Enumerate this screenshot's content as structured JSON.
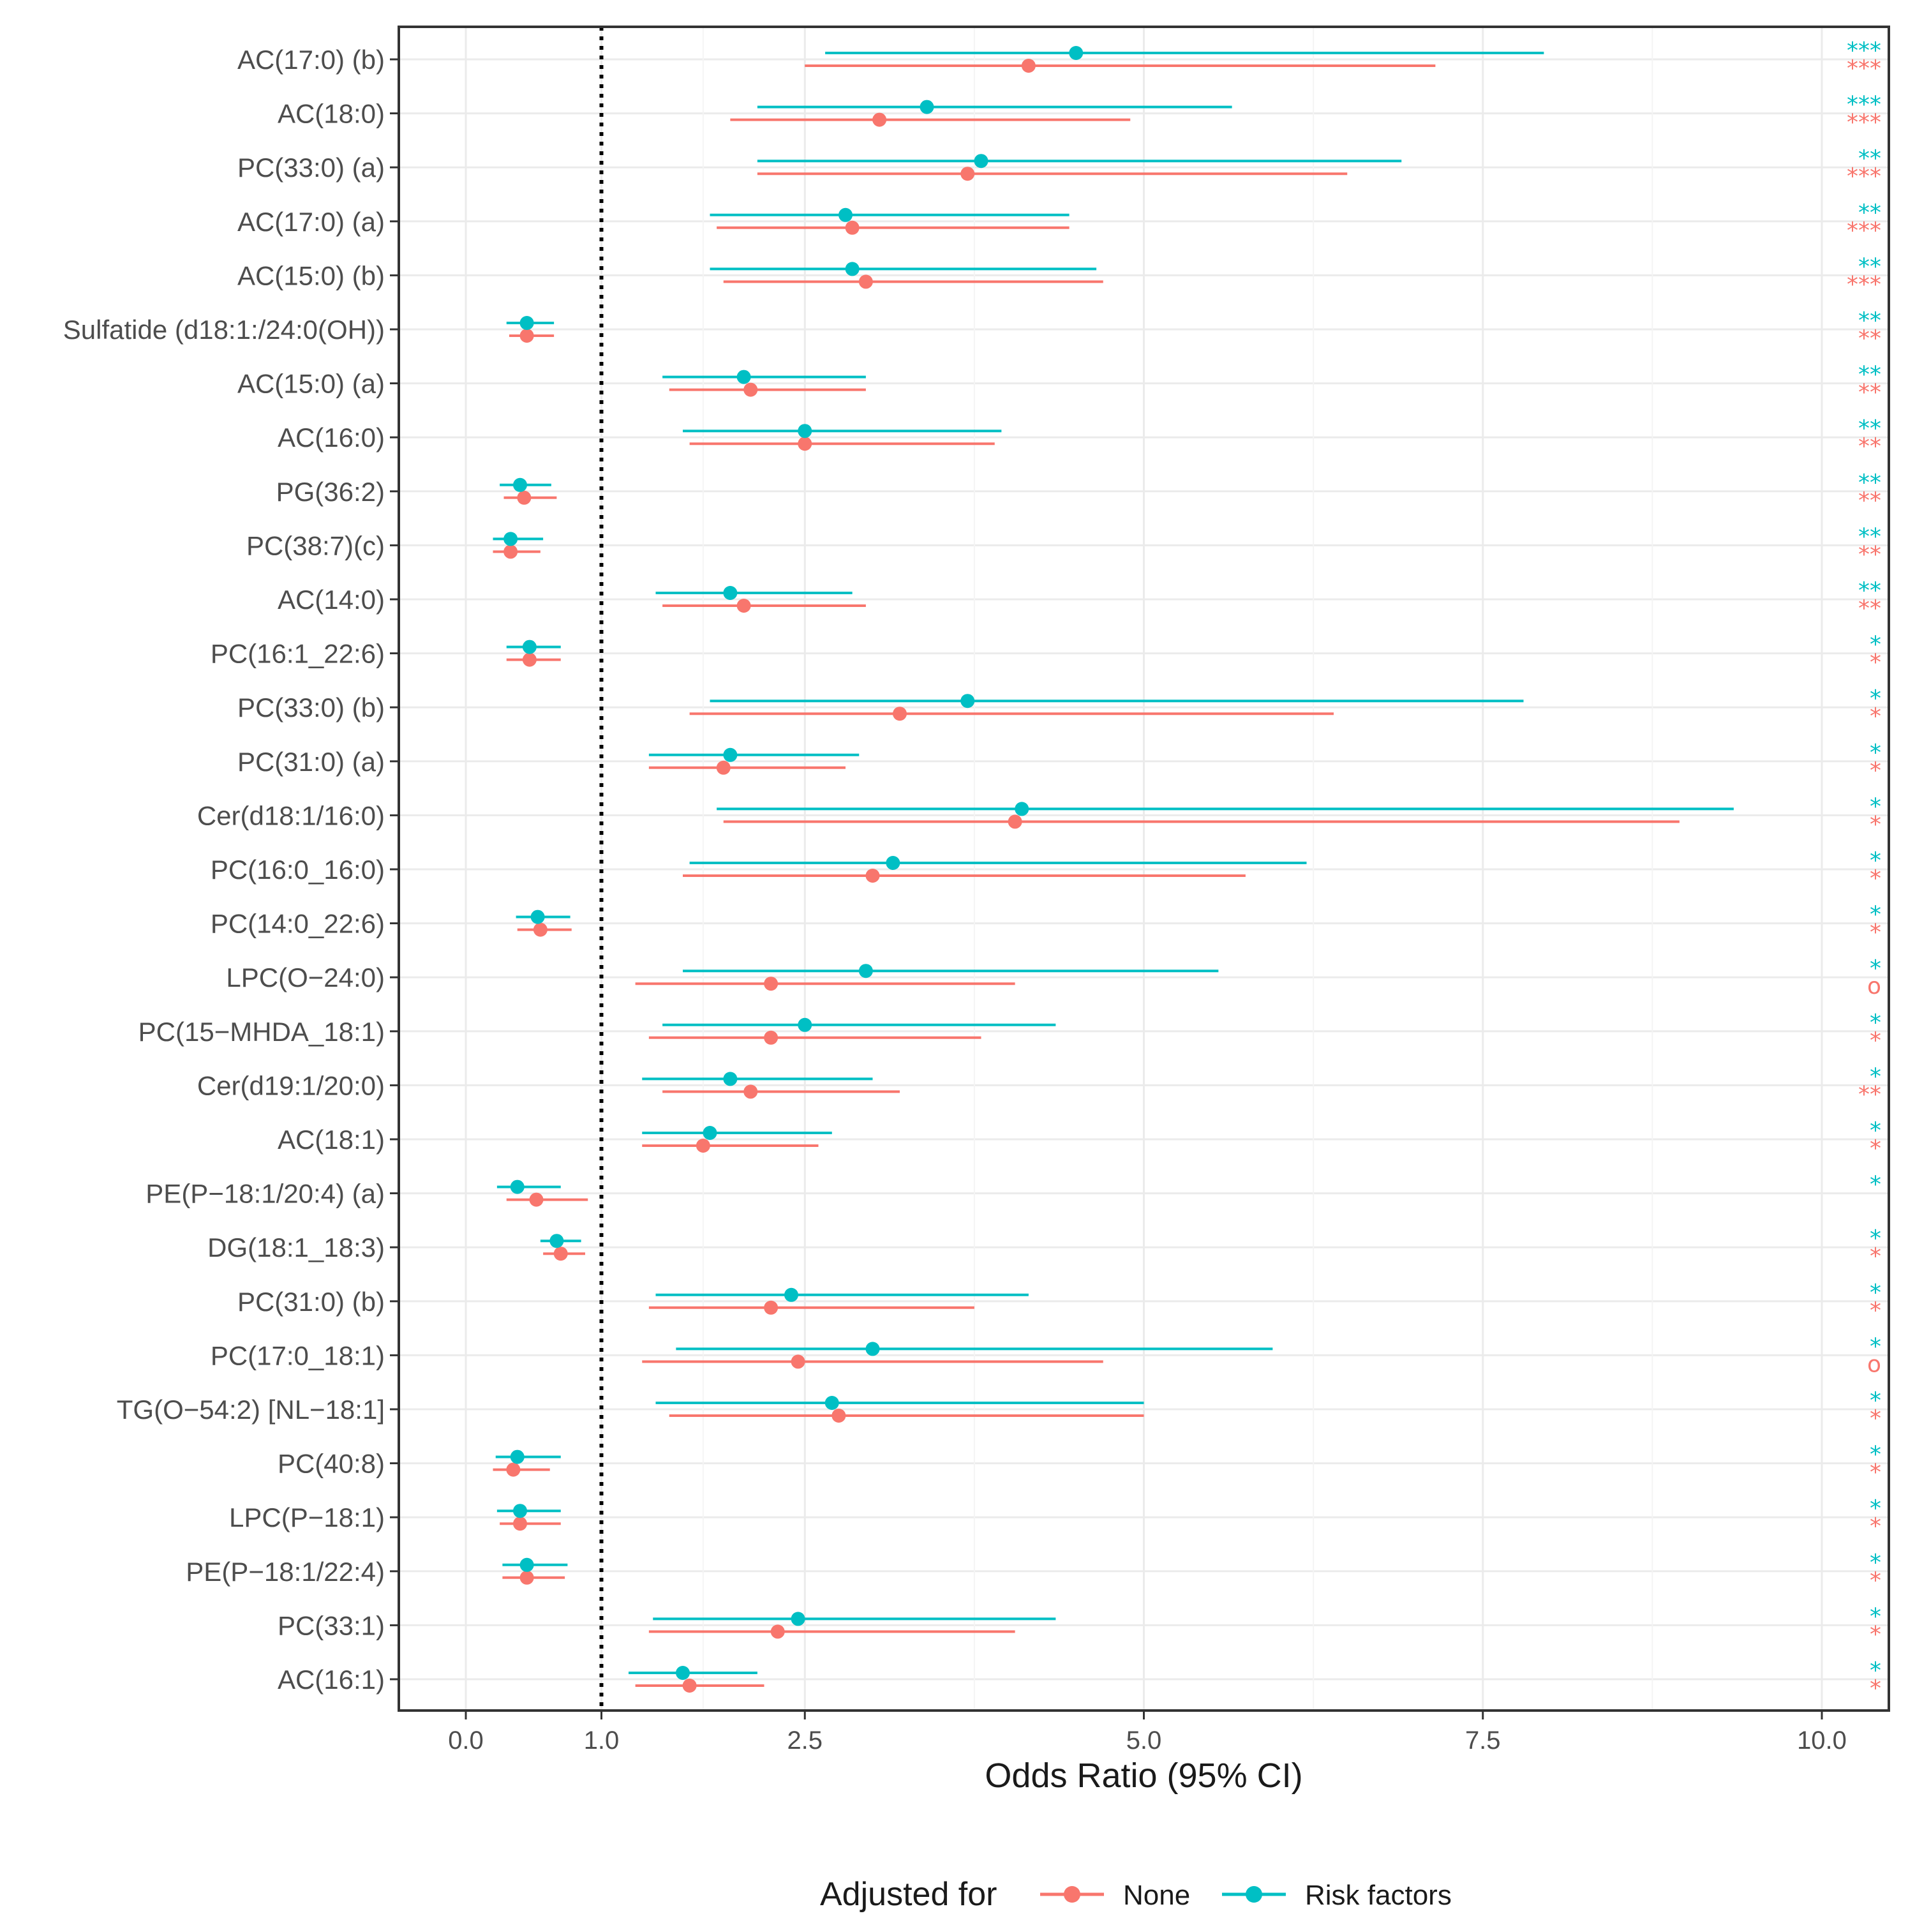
{
  "chart_data": {
    "type": "forest",
    "xlabel": "Odds Ratio (95% CI)",
    "xlim": [
      -1.0,
      10.5
    ],
    "xticks": [
      0.0,
      1.0,
      2.5,
      5.0,
      7.5,
      10.0
    ],
    "xtick_labels": [
      "0.0",
      "1.0",
      "2.5",
      "5.0",
      "7.5",
      "10.0"
    ],
    "reference_line": 1.0,
    "grid": true,
    "legend": {
      "title": "Adjusted for",
      "position": "bottom",
      "entries": [
        {
          "name": "None",
          "color": "#F8766D"
        },
        {
          "name": "Risk factors",
          "color": "#00BFC4"
        }
      ]
    },
    "colors": {
      "none": "#F8766D",
      "risk": "#00BFC4"
    },
    "rows": [
      {
        "label": "AC(17:0) (b)",
        "risk": [
          4.5,
          2.65,
          7.95
        ],
        "none": [
          4.15,
          2.5,
          7.15
        ],
        "sig_risk": "***",
        "sig_none": "***"
      },
      {
        "label": "AC(18:0)",
        "risk": [
          3.4,
          2.15,
          5.65
        ],
        "none": [
          3.05,
          1.95,
          4.9
        ],
        "sig_risk": "***",
        "sig_none": "***"
      },
      {
        "label": "PC(33:0) (a)",
        "risk": [
          3.8,
          2.15,
          6.9
        ],
        "none": [
          3.7,
          2.15,
          6.5
        ],
        "sig_risk": "**",
        "sig_none": "***"
      },
      {
        "label": "AC(17:0) (a)",
        "risk": [
          2.8,
          1.8,
          4.45
        ],
        "none": [
          2.85,
          1.85,
          4.45
        ],
        "sig_risk": "**",
        "sig_none": "***"
      },
      {
        "label": "AC(15:0) (b)",
        "risk": [
          2.85,
          1.8,
          4.65
        ],
        "none": [
          2.95,
          1.9,
          4.7
        ],
        "sig_risk": "**",
        "sig_none": "***"
      },
      {
        "label": "Sulfatide (d18:1:/24:0(OH))",
        "risk": [
          0.45,
          0.3,
          0.65
        ],
        "none": [
          0.45,
          0.32,
          0.65
        ],
        "sig_risk": "**",
        "sig_none": "**"
      },
      {
        "label": "AC(15:0) (a)",
        "risk": [
          2.05,
          1.45,
          2.95
        ],
        "none": [
          2.1,
          1.5,
          2.95
        ],
        "sig_risk": "**",
        "sig_none": "**"
      },
      {
        "label": "AC(16:0)",
        "risk": [
          2.5,
          1.6,
          3.95
        ],
        "none": [
          2.5,
          1.65,
          3.9
        ],
        "sig_risk": "**",
        "sig_none": "**"
      },
      {
        "label": "PG(36:2)",
        "risk": [
          0.4,
          0.25,
          0.63
        ],
        "none": [
          0.43,
          0.28,
          0.67
        ],
        "sig_risk": "**",
        "sig_none": "**"
      },
      {
        "label": "PC(38:7)(c)",
        "risk": [
          0.33,
          0.2,
          0.57
        ],
        "none": [
          0.33,
          0.2,
          0.55
        ],
        "sig_risk": "**",
        "sig_none": "**"
      },
      {
        "label": "AC(14:0)",
        "risk": [
          1.95,
          1.4,
          2.85
        ],
        "none": [
          2.05,
          1.45,
          2.95
        ],
        "sig_risk": "**",
        "sig_none": "**"
      },
      {
        "label": "PC(16:1_22:6)",
        "risk": [
          0.47,
          0.3,
          0.7
        ],
        "none": [
          0.47,
          0.3,
          0.7
        ],
        "sig_risk": "*",
        "sig_none": "*"
      },
      {
        "label": "PC(33:0) (b)",
        "risk": [
          3.7,
          1.8,
          7.8
        ],
        "none": [
          3.2,
          1.65,
          6.4
        ],
        "sig_risk": "*",
        "sig_none": "*"
      },
      {
        "label": "PC(31:0) (a)",
        "risk": [
          1.95,
          1.35,
          2.9
        ],
        "none": [
          1.9,
          1.35,
          2.8
        ],
        "sig_risk": "*",
        "sig_none": "*"
      },
      {
        "label": "Cer(d18:1/16:0)",
        "risk": [
          4.1,
          1.85,
          9.35
        ],
        "none": [
          4.05,
          1.9,
          8.95
        ],
        "sig_risk": "*",
        "sig_none": "*"
      },
      {
        "label": "PC(16:0_16:0)",
        "risk": [
          3.15,
          1.65,
          6.2
        ],
        "none": [
          3.0,
          1.6,
          5.75
        ],
        "sig_risk": "*",
        "sig_none": "*"
      },
      {
        "label": "PC(14:0_22:6)",
        "risk": [
          0.53,
          0.37,
          0.77
        ],
        "none": [
          0.55,
          0.38,
          0.78
        ],
        "sig_risk": "*",
        "sig_none": "*"
      },
      {
        "label": "LPC(O−24:0)",
        "risk": [
          2.95,
          1.6,
          5.55
        ],
        "none": [
          2.25,
          1.25,
          4.05
        ],
        "sig_risk": "*",
        "sig_none": "o"
      },
      {
        "label": "PC(15−MHDA_18:1)",
        "risk": [
          2.5,
          1.45,
          4.35
        ],
        "none": [
          2.25,
          1.35,
          3.8
        ],
        "sig_risk": "*",
        "sig_none": "*"
      },
      {
        "label": "Cer(d19:1/20:0)",
        "risk": [
          1.95,
          1.3,
          3.0
        ],
        "none": [
          2.1,
          1.45,
          3.2
        ],
        "sig_risk": "*",
        "sig_none": "**"
      },
      {
        "label": "AC(18:1)",
        "risk": [
          1.8,
          1.3,
          2.7
        ],
        "none": [
          1.75,
          1.3,
          2.6
        ],
        "sig_risk": "*",
        "sig_none": "*"
      },
      {
        "label": "PE(P−18:1/20:4) (a)",
        "risk": [
          0.38,
          0.23,
          0.7
        ],
        "none": [
          0.52,
          0.3,
          0.9
        ],
        "sig_risk": "*",
        "sig_none": ""
      },
      {
        "label": "DG(18:1_18:3)",
        "risk": [
          0.67,
          0.55,
          0.85
        ],
        "none": [
          0.7,
          0.57,
          0.88
        ],
        "sig_risk": "*",
        "sig_none": "*"
      },
      {
        "label": "PC(31:0) (b)",
        "risk": [
          2.4,
          1.4,
          4.15
        ],
        "none": [
          2.25,
          1.35,
          3.75
        ],
        "sig_risk": "*",
        "sig_none": "*"
      },
      {
        "label": "PC(17:0_18:1)",
        "risk": [
          3.0,
          1.55,
          5.95
        ],
        "none": [
          2.45,
          1.3,
          4.7
        ],
        "sig_risk": "*",
        "sig_none": "o"
      },
      {
        "label": "TG(O−54:2) [NL−18:1]",
        "risk": [
          2.7,
          1.4,
          5.0
        ],
        "none": [
          2.75,
          1.5,
          5.0
        ],
        "sig_risk": "*",
        "sig_none": "*"
      },
      {
        "label": "PC(40:8)",
        "risk": [
          0.38,
          0.22,
          0.7
        ],
        "none": [
          0.35,
          0.2,
          0.62
        ],
        "sig_risk": "*",
        "sig_none": "*"
      },
      {
        "label": "LPC(P−18:1)",
        "risk": [
          0.4,
          0.23,
          0.7
        ],
        "none": [
          0.4,
          0.25,
          0.7
        ],
        "sig_risk": "*",
        "sig_none": "*"
      },
      {
        "label": "PE(P−18:1/22:4)",
        "risk": [
          0.45,
          0.27,
          0.75
        ],
        "none": [
          0.45,
          0.27,
          0.73
        ],
        "sig_risk": "*",
        "sig_none": "*"
      },
      {
        "label": "PC(33:1)",
        "risk": [
          2.45,
          1.38,
          4.35
        ],
        "none": [
          2.3,
          1.35,
          4.05
        ],
        "sig_risk": "*",
        "sig_none": "*"
      },
      {
        "label": "AC(16:1)",
        "risk": [
          1.6,
          1.2,
          2.15
        ],
        "none": [
          1.65,
          1.25,
          2.2
        ],
        "sig_risk": "*",
        "sig_none": "*"
      }
    ]
  }
}
